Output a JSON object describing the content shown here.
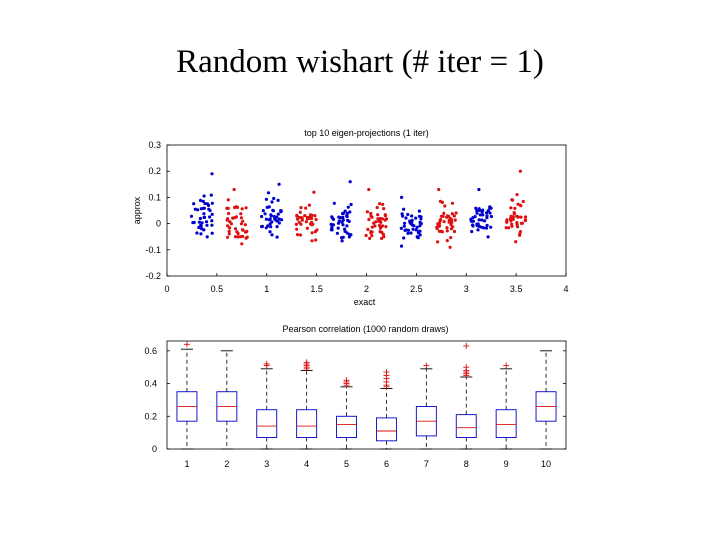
{
  "slide": {
    "title": "Random wishart (# iter = 1)"
  },
  "chart_data": [
    {
      "type": "scatter",
      "title": "top 10 eigen-projections (1 iter)",
      "xlabel": "exact",
      "ylabel": "approx",
      "xlim": [
        0,
        4
      ],
      "ylim": [
        -0.2,
        0.3
      ],
      "xticks": [
        "0",
        "0.5",
        "1",
        "1.5",
        "2",
        "2.5",
        "3",
        "3.5",
        "4"
      ],
      "yticks": [
        "-0.2",
        "-0.1",
        "0",
        "0.1",
        "0.2",
        "0.3"
      ],
      "grid": false,
      "clusters": [
        {
          "index": 1,
          "x_center": 0.35,
          "color": "#0000cc",
          "y_mean": 0.025,
          "y_spread": 0.045,
          "y_max": 0.19
        },
        {
          "index": 2,
          "x_center": 0.7,
          "color": "#dd1111",
          "y_mean": 0.0,
          "y_spread": 0.045,
          "y_max": 0.13
        },
        {
          "index": 3,
          "x_center": 1.05,
          "color": "#0000cc",
          "y_mean": 0.02,
          "y_spread": 0.045,
          "y_max": 0.15
        },
        {
          "index": 4,
          "x_center": 1.4,
          "color": "#dd1111",
          "y_mean": 0.005,
          "y_spread": 0.04,
          "y_max": 0.12
        },
        {
          "index": 5,
          "x_center": 1.75,
          "color": "#0000cc",
          "y_mean": 0.0,
          "y_spread": 0.045,
          "y_max": 0.16
        },
        {
          "index": 6,
          "x_center": 2.1,
          "color": "#dd1111",
          "y_mean": 0.01,
          "y_spread": 0.04,
          "y_max": 0.13
        },
        {
          "index": 7,
          "x_center": 2.45,
          "color": "#0000cc",
          "y_mean": -0.01,
          "y_spread": 0.045,
          "y_max": 0.1
        },
        {
          "index": 8,
          "x_center": 2.8,
          "color": "#dd1111",
          "y_mean": 0.01,
          "y_spread": 0.045,
          "y_max": 0.13
        },
        {
          "index": 9,
          "x_center": 3.15,
          "color": "#0000cc",
          "y_mean": 0.02,
          "y_spread": 0.04,
          "y_max": 0.13
        },
        {
          "index": 10,
          "x_center": 3.5,
          "color": "#dd1111",
          "y_mean": 0.02,
          "y_spread": 0.045,
          "y_max": 0.2
        }
      ]
    },
    {
      "type": "box",
      "title": "Pearson correlation (1000 random draws)",
      "categories": [
        "1",
        "2",
        "3",
        "4",
        "5",
        "6",
        "7",
        "8",
        "9",
        "10"
      ],
      "ylim": [
        0,
        0.66
      ],
      "yticks": [
        "0",
        "0.2",
        "0.4",
        "0.6"
      ],
      "box_color": "#0000cc",
      "median_color": "#dd1111",
      "boxes": [
        {
          "category": "1",
          "whisker_low": 0.0,
          "q1": 0.17,
          "median": 0.26,
          "q3": 0.35,
          "whisker_high": 0.61,
          "outliers": [
            0.64
          ]
        },
        {
          "category": "2",
          "whisker_low": 0.0,
          "q1": 0.17,
          "median": 0.26,
          "q3": 0.35,
          "whisker_high": 0.6,
          "outliers": []
        },
        {
          "category": "3",
          "whisker_low": 0.0,
          "q1": 0.07,
          "median": 0.14,
          "q3": 0.24,
          "whisker_high": 0.49,
          "outliers": [
            0.51,
            0.52
          ]
        },
        {
          "category": "4",
          "whisker_low": 0.0,
          "q1": 0.07,
          "median": 0.14,
          "q3": 0.24,
          "whisker_high": 0.48,
          "outliers": [
            0.49,
            0.5,
            0.51,
            0.52,
            0.53
          ]
        },
        {
          "category": "5",
          "whisker_low": 0.0,
          "q1": 0.07,
          "median": 0.15,
          "q3": 0.2,
          "whisker_high": 0.38,
          "outliers": [
            0.39,
            0.4,
            0.41,
            0.42
          ]
        },
        {
          "category": "6",
          "whisker_low": 0.0,
          "q1": 0.05,
          "median": 0.11,
          "q3": 0.19,
          "whisker_high": 0.37,
          "outliers": [
            0.38,
            0.39,
            0.41,
            0.43,
            0.45,
            0.47
          ]
        },
        {
          "category": "7",
          "whisker_low": 0.0,
          "q1": 0.08,
          "median": 0.17,
          "q3": 0.26,
          "whisker_high": 0.49,
          "outliers": [
            0.51
          ]
        },
        {
          "category": "8",
          "whisker_low": 0.0,
          "q1": 0.07,
          "median": 0.13,
          "q3": 0.21,
          "whisker_high": 0.44,
          "outliers": [
            0.45,
            0.46,
            0.47,
            0.48,
            0.5,
            0.63
          ]
        },
        {
          "category": "9",
          "whisker_low": 0.0,
          "q1": 0.07,
          "median": 0.15,
          "q3": 0.24,
          "whisker_high": 0.49,
          "outliers": [
            0.51
          ]
        },
        {
          "category": "10",
          "whisker_low": 0.0,
          "q1": 0.17,
          "median": 0.26,
          "q3": 0.35,
          "whisker_high": 0.6,
          "outliers": []
        }
      ]
    }
  ]
}
